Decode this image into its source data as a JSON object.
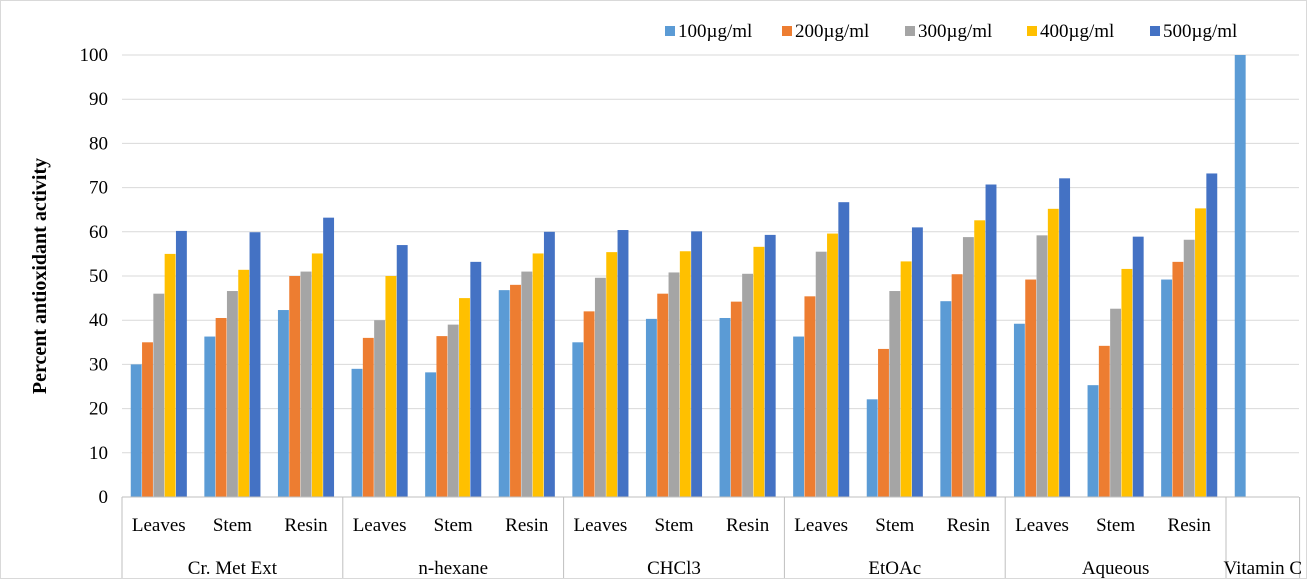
{
  "chart_data": {
    "type": "bar",
    "title": "",
    "xlabel": "",
    "ylabel": "Percent antioxidant activity",
    "ylim": [
      0,
      100
    ],
    "yticks": [
      0,
      10,
      20,
      30,
      40,
      50,
      60,
      70,
      80,
      90,
      100
    ],
    "grid": true,
    "legend_position": "top-right",
    "groups": [
      {
        "name": "Cr. Met Ext",
        "categories": [
          "Leaves",
          "Stem",
          "Resin"
        ]
      },
      {
        "name": "n-hexane",
        "categories": [
          "Leaves",
          "Stem",
          "Resin"
        ]
      },
      {
        "name": "CHCl3",
        "categories": [
          "Leaves",
          "Stem",
          "Resin"
        ]
      },
      {
        "name": "EtOAc",
        "categories": [
          "Leaves",
          "Stem",
          "Resin"
        ]
      },
      {
        "name": "Aqueous",
        "categories": [
          "Leaves",
          "Stem",
          "Resin"
        ]
      },
      {
        "name": "Vitamin C",
        "categories": [
          ""
        ]
      }
    ],
    "series": [
      {
        "name": "100µg/ml",
        "color": "#5b9bd5",
        "values": [
          30,
          36.3,
          42.3,
          29,
          28.2,
          46.8,
          35,
          40.3,
          40.5,
          36.3,
          22.1,
          44.3,
          39.2,
          25.3,
          49.2,
          100
        ]
      },
      {
        "name": "200µg/ml",
        "color": "#ed7d31",
        "values": [
          35,
          40.5,
          50,
          36,
          36.4,
          48,
          42,
          46,
          44.2,
          45.4,
          33.5,
          50.4,
          49.2,
          34.2,
          53.2,
          null
        ]
      },
      {
        "name": "300µg/ml",
        "color": "#a5a5a5",
        "values": [
          46,
          46.6,
          51,
          40,
          39,
          51,
          49.6,
          50.8,
          50.5,
          55.5,
          46.6,
          58.8,
          59.2,
          42.6,
          58.2,
          null
        ]
      },
      {
        "name": "400µg/ml",
        "color": "#ffc000",
        "values": [
          55,
          51.4,
          55.1,
          50,
          45,
          55.1,
          55.4,
          55.6,
          56.6,
          59.6,
          53.3,
          62.6,
          65.2,
          51.6,
          65.3,
          null
        ]
      },
      {
        "name": "500µg/ml",
        "color": "#4472c4",
        "values": [
          60.2,
          59.9,
          63.2,
          57,
          53.2,
          60,
          60.4,
          60.1,
          59.3,
          66.7,
          61,
          70.7,
          72.1,
          58.9,
          73.2,
          null
        ]
      }
    ]
  }
}
